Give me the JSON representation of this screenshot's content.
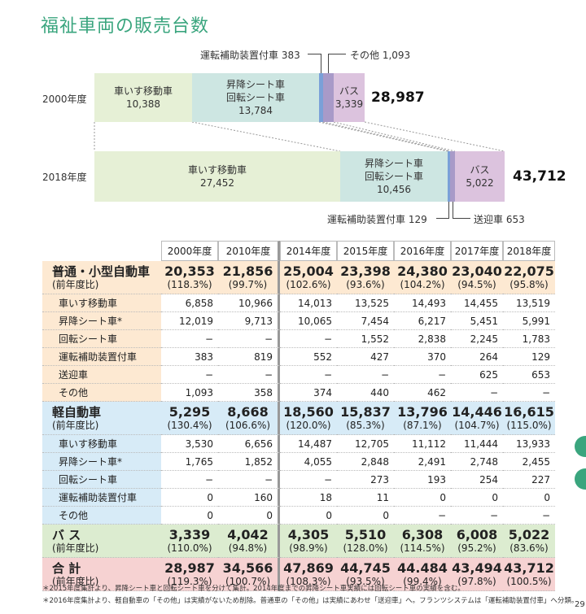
{
  "title": "福祉車両の販売台数",
  "bars": {
    "y2000": {
      "label": "2000年度",
      "total": "28,987",
      "segments": {
        "wheelchair": {
          "name": "車いす移動車",
          "value": "10,388"
        },
        "seat": {
          "name1": "昇降シート車",
          "name2": "回転シート車",
          "value": "13,784"
        },
        "bus": {
          "name": "バス",
          "value": "3,339"
        }
      },
      "callouts": {
        "driving": "運転補助装置付車 383",
        "other": "その他 1,093"
      }
    },
    "y2018": {
      "label": "2018年度",
      "total": "43,712",
      "segments": {
        "wheelchair": {
          "name": "車いす移動車",
          "value": "27,452"
        },
        "seat": {
          "name1": "昇降シート車",
          "name2": "回転シート車",
          "value": "10,456"
        },
        "bus": {
          "name": "バス",
          "value": "5,022"
        }
      },
      "callouts": {
        "driving": "運転補助装置付車 129",
        "pickup": "送迎車 653"
      }
    }
  },
  "table": {
    "years": [
      "2000年度",
      "2010年度",
      "2014年度",
      "2015年度",
      "2016年度",
      "2017年度",
      "2018年度"
    ],
    "sections": [
      {
        "name": "普通・小型自動車",
        "sub": "(前年度比)",
        "totals": [
          "20,353",
          "21,856",
          "25,004",
          "23,398",
          "24,380",
          "23,040",
          "22,075"
        ],
        "ratios": [
          "(118.3%)",
          "(99.7%)",
          "(102.6%)",
          "(93.6%)",
          "(104.2%)",
          "(94.5%)",
          "(95.8%)"
        ],
        "rows": [
          {
            "label": "車いす移動車",
            "values": [
              "6,858",
              "10,966",
              "14,013",
              "13,525",
              "14,493",
              "14,455",
              "13,519"
            ]
          },
          {
            "label": "昇降シート車*",
            "values": [
              "12,019",
              "9,713",
              "10,065",
              "7,454",
              "6,217",
              "5,451",
              "5,991"
            ]
          },
          {
            "label": "回転シート車",
            "values": [
              "−",
              "−",
              "−",
              "1,552",
              "2,838",
              "2,245",
              "1,783"
            ]
          },
          {
            "label": "運転補助装置付車",
            "values": [
              "383",
              "819",
              "552",
              "427",
              "370",
              "264",
              "129"
            ]
          },
          {
            "label": "送迎車",
            "values": [
              "−",
              "−",
              "−",
              "−",
              "−",
              "625",
              "653"
            ]
          },
          {
            "label": "その他",
            "values": [
              "1,093",
              "358",
              "374",
              "440",
              "462",
              "−",
              "−"
            ]
          }
        ]
      },
      {
        "name": "軽自動車",
        "sub": "(前年度比)",
        "totals": [
          "5,295",
          "8,668",
          "18,560",
          "15,837",
          "13,796",
          "14,446",
          "16,615"
        ],
        "ratios": [
          "(130.4%)",
          "(106.6%)",
          "(120.0%)",
          "(85.3%)",
          "(87.1%)",
          "(104.7%)",
          "(115.0%)"
        ],
        "rows": [
          {
            "label": "車いす移動車",
            "values": [
              "3,530",
              "6,656",
              "14,487",
              "12,705",
              "11,112",
              "11,444",
              "13,933"
            ]
          },
          {
            "label": "昇降シート車*",
            "values": [
              "1,765",
              "1,852",
              "4,055",
              "2,848",
              "2,491",
              "2,748",
              "2,455"
            ]
          },
          {
            "label": "回転シート車",
            "values": [
              "−",
              "−",
              "−",
              "273",
              "193",
              "254",
              "227"
            ]
          },
          {
            "label": "運転補助装置付車",
            "values": [
              "0",
              "160",
              "18",
              "11",
              "0",
              "0",
              "0"
            ]
          },
          {
            "label": "その他",
            "values": [
              "0",
              "0",
              "0",
              "0",
              "−",
              "−",
              "−"
            ]
          }
        ]
      }
    ],
    "bus": {
      "name": "バ ス",
      "sub": "(前年度比)",
      "totals": [
        "3,339",
        "4,042",
        "4,305",
        "5,510",
        "6,308",
        "6,008",
        "5,022"
      ],
      "ratios": [
        "(110.0%)",
        "(94.8%)",
        "(98.9%)",
        "(128.0%)",
        "(114.5%)",
        "(95.2%)",
        "(83.6%)"
      ]
    },
    "total": {
      "name": "合 計",
      "sub": "(前年度比)",
      "totals": [
        "28,987",
        "34,566",
        "47,869",
        "44,745",
        "44.484",
        "43,494",
        "43,712"
      ],
      "ratios": [
        "(119.3%)",
        "(100.7%)",
        "(108.3%)",
        "(93.5%)",
        "(99.4%)",
        "(97.8%)",
        "(100.5%)"
      ]
    }
  },
  "notes": [
    "＊2015年度集計より、昇降シート車と回転シート車を分けて集計。2014年度までの昇降シート車実績には回転シート車の実績を含む。",
    "＊2016年度集計より、軽自動車の「その他」は実績がないため削除。普通車の「その他」は実績にあわせ「送迎車」へ。フランツシステムは「運転補助装置付車」へ分類。"
  ],
  "page_number": "29",
  "colors": {
    "title": "#3aa57e",
    "wheelchair": "#e6f0d6",
    "seat": "#cde6e2",
    "bus": "#dcc3de",
    "driving": "#7aa0d8",
    "other": "#a89ac8"
  }
}
